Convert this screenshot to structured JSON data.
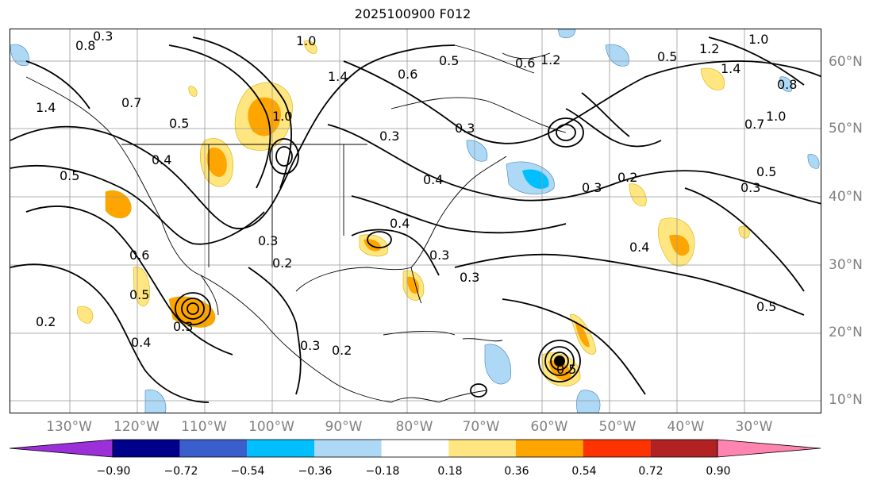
{
  "title": "2025100900 F012",
  "lon_labels": [
    "130°W",
    "120°W",
    "110°W",
    "100°W",
    "90°W",
    "80°W",
    "70°W",
    "60°W",
    "50°W",
    "40°W",
    "30°W"
  ],
  "lat_labels": [
    "60°N",
    "50°N",
    "40°N",
    "30°N",
    "20°N",
    "10°N"
  ],
  "contour_labels": [
    "0.3",
    "0.8",
    "0.6",
    "0.7",
    "1.4",
    "1.0",
    "0.5",
    "0.5",
    "0.4",
    "1.0",
    "0.5",
    "0.2",
    "0.4",
    "0.6",
    "0.3",
    "1.4",
    "1.2",
    "0.6",
    "0.3",
    "0.3",
    "0.4",
    "0.3",
    "0.3",
    "0.2",
    "0.3",
    "0.5",
    "1.0",
    "0.5",
    "0.3",
    "0.2",
    "0.4",
    "0.5",
    "0.3",
    "1.0",
    "1.2",
    "1.4",
    "0.8",
    "0.7",
    "0.5",
    "0.3",
    "0.4",
    "0.5",
    "0.2"
  ],
  "colorbar": {
    "ticks": [
      "−0.90",
      "−0.72",
      "−0.54",
      "−0.36",
      "−0.18",
      "0.18",
      "0.36",
      "0.54",
      "0.72",
      "0.90"
    ],
    "colors": [
      "#9b30d9",
      "#00008b",
      "#3a5fcd",
      "#00bfff",
      "#add8f6",
      "#ffffff",
      "#ffe680",
      "#ffa500",
      "#ff3300",
      "#b22222",
      "#ff85b0"
    ]
  },
  "shading_colors": {
    "light_blue": "#add8f6",
    "blue": "#00bfff",
    "light_orange": "#ffe680",
    "orange": "#ffa500"
  }
}
